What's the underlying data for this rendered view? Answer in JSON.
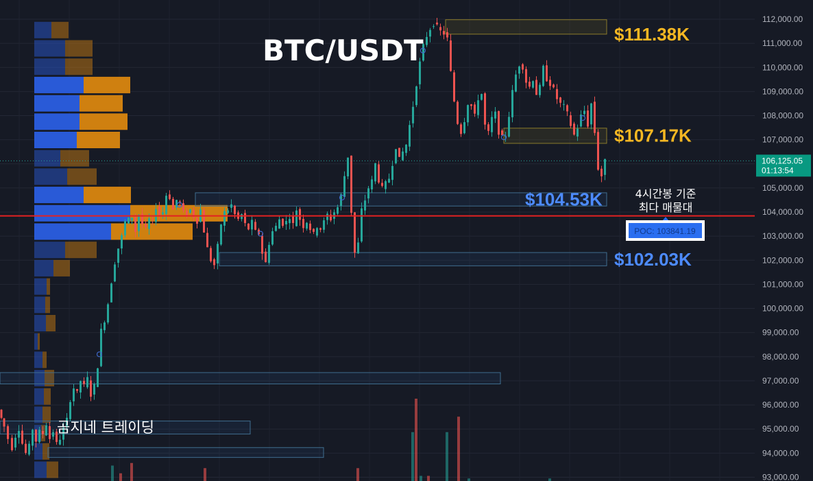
{
  "title": "BTC/USDT",
  "brand": "곰지네 트레이딩",
  "note_line1": "4시간봉 기준",
  "note_line2": "최다 매물대",
  "poc_label": "POC: 103841.19",
  "price_tag": {
    "price": "106,125.05",
    "timer": "01:13:54"
  },
  "levels": [
    {
      "label": "$111.38K",
      "price": 111380,
      "color": "#f5b722"
    },
    {
      "label": "$107.17K",
      "price": 107170,
      "color": "#f5b722"
    },
    {
      "label": "$104.53K",
      "price": 104530,
      "color": "#4d8bff"
    },
    {
      "label": "$102.03K",
      "price": 102030,
      "color": "#4d8bff"
    }
  ],
  "colors": {
    "up": "#26a69a",
    "down": "#ef5350",
    "buy": "#2a5ee0",
    "sell": "#d9860f",
    "poc": "#e32222"
  },
  "chart_data": {
    "type": "candlestick",
    "ylim": [
      93000,
      112000
    ],
    "y_ticks": [
      "112,000.00",
      "111,000.00",
      "110,000.00",
      "109,000.00",
      "108,000.00",
      "107,000.00",
      "106,000.00",
      "105,000.00",
      "104,000.00",
      "103,000.00",
      "102,000.00",
      "101,000.00",
      "100,000.00",
      "99,000.00",
      "98,000.00",
      "97,000.00",
      "96,000.00",
      "95,000.00",
      "94,000.00",
      "93,000.00"
    ],
    "last_price": 106125.05,
    "poc": 103841.19,
    "close_path": [
      [
        0,
        95800
      ],
      [
        8,
        95100
      ],
      [
        15,
        94600
      ],
      [
        20,
        94200
      ],
      [
        25,
        94700
      ],
      [
        30,
        95000
      ],
      [
        35,
        94400
      ],
      [
        40,
        94000
      ],
      [
        45,
        94300
      ],
      [
        50,
        95000
      ],
      [
        55,
        94500
      ],
      [
        60,
        94900
      ],
      [
        65,
        94800
      ],
      [
        70,
        95200
      ],
      [
        75,
        94600
      ],
      [
        80,
        94900
      ],
      [
        85,
        94400
      ],
      [
        90,
        94600
      ],
      [
        95,
        95000
      ],
      [
        100,
        95400
      ],
      [
        105,
        96200
      ],
      [
        110,
        96700
      ],
      [
        115,
        96500
      ],
      [
        120,
        97000
      ],
      [
        125,
        96800
      ],
      [
        130,
        97100
      ],
      [
        135,
        96400
      ],
      [
        140,
        96800
      ],
      [
        145,
        97600
      ],
      [
        150,
        99100
      ],
      [
        155,
        99500
      ],
      [
        160,
        100200
      ],
      [
        165,
        101100
      ],
      [
        170,
        101900
      ],
      [
        175,
        102500
      ],
      [
        180,
        103000
      ],
      [
        185,
        103600
      ],
      [
        190,
        103700
      ],
      [
        195,
        103800
      ],
      [
        200,
        103200
      ],
      [
        205,
        103900
      ],
      [
        210,
        103500
      ],
      [
        215,
        103300
      ],
      [
        220,
        103700
      ],
      [
        225,
        103600
      ],
      [
        230,
        104200
      ],
      [
        235,
        103900
      ],
      [
        240,
        104000
      ],
      [
        245,
        104700
      ],
      [
        250,
        104600
      ],
      [
        255,
        104100
      ],
      [
        260,
        104500
      ],
      [
        265,
        104400
      ],
      [
        270,
        104000
      ],
      [
        275,
        103900
      ],
      [
        280,
        104100
      ],
      [
        285,
        103800
      ],
      [
        290,
        103600
      ],
      [
        295,
        104100
      ],
      [
        300,
        103200
      ],
      [
        305,
        102500
      ],
      [
        310,
        102000
      ],
      [
        315,
        101800
      ],
      [
        320,
        102600
      ],
      [
        325,
        103500
      ],
      [
        330,
        104000
      ],
      [
        335,
        104100
      ],
      [
        340,
        104300
      ],
      [
        345,
        103900
      ],
      [
        350,
        103700
      ],
      [
        355,
        103900
      ],
      [
        360,
        103500
      ],
      [
        365,
        103300
      ],
      [
        370,
        103600
      ],
      [
        375,
        103200
      ],
      [
        380,
        103100
      ],
      [
        385,
        102300
      ],
      [
        390,
        101900
      ],
      [
        395,
        102700
      ],
      [
        400,
        103200
      ],
      [
        405,
        103400
      ],
      [
        410,
        103700
      ],
      [
        415,
        103500
      ],
      [
        420,
        103600
      ],
      [
        425,
        103800
      ],
      [
        430,
        103500
      ],
      [
        435,
        104100
      ],
      [
        440,
        103700
      ],
      [
        445,
        103400
      ],
      [
        450,
        103600
      ],
      [
        455,
        103300
      ],
      [
        460,
        103100
      ],
      [
        465,
        103400
      ],
      [
        470,
        103300
      ],
      [
        475,
        103600
      ],
      [
        480,
        103900
      ],
      [
        485,
        103700
      ],
      [
        490,
        104000
      ],
      [
        495,
        104200
      ],
      [
        500,
        104700
      ],
      [
        505,
        105500
      ],
      [
        510,
        106300
      ],
      [
        515,
        104000
      ],
      [
        520,
        102300
      ],
      [
        525,
        102700
      ],
      [
        530,
        104100
      ],
      [
        535,
        104500
      ],
      [
        540,
        105000
      ],
      [
        545,
        105300
      ],
      [
        550,
        106000
      ],
      [
        555,
        105300
      ],
      [
        560,
        105000
      ],
      [
        565,
        105200
      ],
      [
        570,
        105400
      ],
      [
        575,
        106000
      ],
      [
        580,
        106700
      ],
      [
        585,
        106200
      ],
      [
        590,
        106500
      ],
      [
        595,
        106800
      ],
      [
        600,
        107600
      ],
      [
        605,
        108400
      ],
      [
        610,
        109300
      ],
      [
        615,
        110200
      ],
      [
        620,
        110900
      ],
      [
        625,
        111300
      ],
      [
        630,
        111600
      ],
      [
        635,
        111800
      ],
      [
        640,
        111700
      ],
      [
        645,
        111500
      ],
      [
        650,
        111400
      ],
      [
        655,
        111200
      ],
      [
        660,
        109800
      ],
      [
        665,
        108600
      ],
      [
        670,
        107700
      ],
      [
        675,
        107300
      ],
      [
        680,
        107800
      ],
      [
        685,
        108500
      ],
      [
        690,
        108400
      ],
      [
        695,
        108000
      ],
      [
        700,
        108700
      ],
      [
        705,
        108900
      ],
      [
        710,
        107600
      ],
      [
        715,
        107300
      ],
      [
        720,
        107900
      ],
      [
        725,
        108100
      ],
      [
        730,
        107300
      ],
      [
        735,
        107100
      ],
      [
        740,
        107200
      ],
      [
        745,
        108000
      ],
      [
        750,
        109000
      ],
      [
        755,
        109700
      ],
      [
        760,
        110100
      ],
      [
        765,
        110000
      ],
      [
        770,
        109400
      ],
      [
        775,
        109200
      ],
      [
        780,
        109500
      ],
      [
        785,
        108900
      ],
      [
        790,
        109200
      ],
      [
        795,
        110000
      ],
      [
        800,
        109500
      ],
      [
        805,
        109300
      ],
      [
        810,
        109100
      ],
      [
        815,
        108700
      ],
      [
        820,
        108500
      ],
      [
        825,
        108400
      ],
      [
        830,
        108100
      ],
      [
        835,
        107600
      ],
      [
        840,
        107200
      ],
      [
        845,
        107500
      ],
      [
        850,
        108000
      ],
      [
        855,
        108200
      ],
      [
        860,
        107600
      ],
      [
        865,
        108500
      ],
      [
        870,
        107300
      ],
      [
        875,
        105800
      ],
      [
        880,
        105500
      ],
      [
        885,
        106125
      ]
    ],
    "volume_profile": [
      {
        "price": 111550,
        "buy": 25,
        "sell": 25
      },
      {
        "price": 110790,
        "buy": 45,
        "sell": 40
      },
      {
        "price": 110030,
        "buy": 45,
        "sell": 40
      },
      {
        "price": 109270,
        "buy": 72,
        "sell": 68
      },
      {
        "price": 108510,
        "buy": 66,
        "sell": 63
      },
      {
        "price": 107750,
        "buy": 66,
        "sell": 70
      },
      {
        "price": 106990,
        "buy": 62,
        "sell": 63
      },
      {
        "price": 106230,
        "buy": 38,
        "sell": 42
      },
      {
        "price": 105470,
        "buy": 48,
        "sell": 43
      },
      {
        "price": 104710,
        "buy": 72,
        "sell": 69
      },
      {
        "price": 103950,
        "buy": 140,
        "sell": 142
      },
      {
        "price": 103190,
        "buy": 112,
        "sell": 119
      },
      {
        "price": 102430,
        "buy": 45,
        "sell": 46
      },
      {
        "price": 101670,
        "buy": 28,
        "sell": 24
      },
      {
        "price": 100910,
        "buy": 18,
        "sell": 5
      },
      {
        "price": 100150,
        "buy": 16,
        "sell": 7
      },
      {
        "price": 99390,
        "buy": 17,
        "sell": 14
      },
      {
        "price": 98630,
        "buy": 5,
        "sell": 3
      },
      {
        "price": 97870,
        "buy": 12,
        "sell": 6
      },
      {
        "price": 97110,
        "buy": 15,
        "sell": 14
      },
      {
        "price": 96350,
        "buy": 14,
        "sell": 10
      },
      {
        "price": 95590,
        "buy": 12,
        "sell": 12
      },
      {
        "price": 94830,
        "buy": 10,
        "sell": 6
      },
      {
        "price": 94070,
        "buy": 12,
        "sell": 10
      },
      {
        "price": 93310,
        "buy": 18,
        "sell": 17
      }
    ],
    "zones": [
      {
        "p1": 111380,
        "p2": 111980,
        "x0": 650,
        "x1": 885,
        "kind": "supply"
      },
      {
        "p1": 106850,
        "p2": 107480,
        "x0": 735,
        "x1": 885,
        "kind": "supply"
      },
      {
        "p1": 104250,
        "p2": 104800,
        "x0": 285,
        "x1": 885,
        "kind": "demand"
      },
      {
        "p1": 101770,
        "p2": 102320,
        "x0": 320,
        "x1": 885,
        "kind": "demand"
      },
      {
        "p1": 96870,
        "p2": 97340,
        "x0": 0,
        "x1": 730,
        "kind": "demand"
      },
      {
        "p1": 94790,
        "p2": 95330,
        "x0": 0,
        "x1": 365,
        "kind": "demand"
      },
      {
        "p1": 93820,
        "p2": 94230,
        "x0": 70,
        "x1": 472,
        "kind": "demand"
      }
    ],
    "volumes": [
      {
        "x": 162,
        "v": 0.3,
        "dir": "up"
      },
      {
        "x": 174,
        "v": 0.15,
        "dir": "down"
      },
      {
        "x": 190,
        "v": 0.35,
        "dir": "down"
      },
      {
        "x": 297,
        "v": 0.25,
        "dir": "down"
      },
      {
        "x": 520,
        "v": 0.25,
        "dir": "down"
      },
      {
        "x": 600,
        "v": 0.95,
        "dir": "up"
      },
      {
        "x": 605,
        "v": 1.6,
        "dir": "down"
      },
      {
        "x": 612,
        "v": 0.1,
        "dir": "up"
      },
      {
        "x": 623,
        "v": 0.1,
        "dir": "down"
      },
      {
        "x": 650,
        "v": 0.95,
        "dir": "up"
      },
      {
        "x": 667,
        "v": 1.25,
        "dir": "down"
      },
      {
        "x": 682,
        "v": 0.05,
        "dir": "up"
      },
      {
        "x": 800,
        "v": 0.05,
        "dir": "up"
      }
    ]
  }
}
